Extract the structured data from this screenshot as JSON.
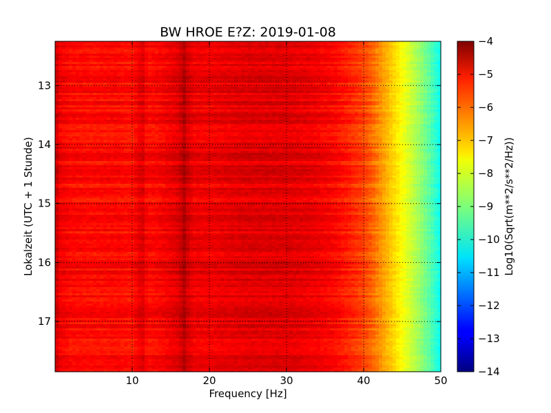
{
  "chart_data": {
    "type": "heatmap",
    "title": "BW HROE E?Z: 2019-01-08",
    "xlabel": "Frequency [Hz]",
    "ylabel": "Lokalzeit (UTC + 1 Stunde)",
    "xlim": [
      0,
      50
    ],
    "ylim": [
      12.25,
      17.85
    ],
    "y_inverted": true,
    "x_ticks": [
      10,
      20,
      30,
      40,
      50
    ],
    "x_tick_labels": [
      "10",
      "20",
      "30",
      "40",
      "50"
    ],
    "y_ticks": [
      13,
      14,
      15,
      16,
      17
    ],
    "y_tick_labels": [
      "13",
      "14",
      "15",
      "16",
      "17"
    ],
    "grid": true,
    "colormap": "jet",
    "colorbar": {
      "label": "Log10(Sqrt(m**2/s**2/Hz))",
      "min": -14,
      "max": -4,
      "ticks": [
        -4,
        -5,
        -6,
        -7,
        -8,
        -9,
        -10,
        -11,
        -12,
        -13,
        -14
      ],
      "tick_labels": [
        "−4",
        "−5",
        "−6",
        "−7",
        "−8",
        "−9",
        "−10",
        "−11",
        "−12",
        "−13",
        "−14"
      ]
    },
    "spectrum_profile": {
      "frequency_hz": [
        0,
        0.5,
        2,
        5,
        8,
        10,
        11.3,
        12,
        14,
        16,
        16.8,
        17.2,
        18,
        20,
        25,
        30,
        33,
        36,
        38,
        40,
        41,
        42,
        43,
        44,
        45,
        46,
        47,
        48,
        49,
        50
      ],
      "log10_amplitude": [
        -4.6,
        -5.1,
        -5.3,
        -5.35,
        -5.3,
        -5.4,
        -4.9,
        -5.35,
        -5.2,
        -4.95,
        -4.5,
        -4.85,
        -5.1,
        -5.1,
        -4.95,
        -4.95,
        -5.05,
        -5.25,
        -5.55,
        -5.9,
        -6.2,
        -6.6,
        -7.0,
        -7.4,
        -7.8,
        -8.2,
        -8.6,
        -9.1,
        -9.6,
        -10.2
      ]
    }
  }
}
